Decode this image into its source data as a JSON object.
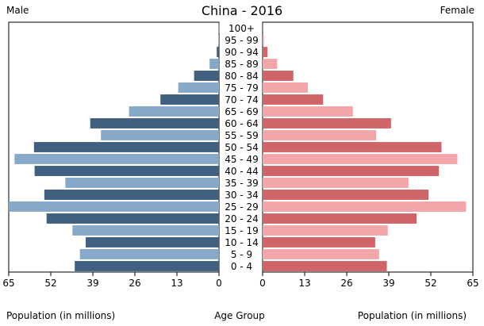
{
  "chart_data": {
    "type": "bar",
    "title": "China - 2016",
    "left_label": "Male",
    "right_label": "Female",
    "xlabel_left": "Population (in millions)",
    "xlabel_center": "Age Group",
    "xlabel_right": "Population (in millions)",
    "xlim": [
      0,
      65
    ],
    "ticks": [
      0,
      13,
      26,
      39,
      52,
      65
    ],
    "categories": [
      "100+",
      "95 - 99",
      "90 - 94",
      "85 - 89",
      "80 - 84",
      "75 - 79",
      "70 - 74",
      "65 - 69",
      "60 - 64",
      "55 - 59",
      "50 - 54",
      "45 - 49",
      "40 - 44",
      "35 - 39",
      "30 - 34",
      "25 - 29",
      "20 - 24",
      "15 - 19",
      "10 - 14",
      "5 - 9",
      "0 - 4"
    ],
    "series": [
      {
        "name": "Male",
        "values": [
          0.1,
          0.2,
          0.7,
          2.9,
          7.7,
          12.6,
          18.1,
          27.8,
          39.8,
          36.5,
          57.2,
          63.2,
          57.0,
          47.5,
          54.0,
          65.0,
          53.3,
          45.3,
          41.2,
          43.0,
          44.6
        ]
      },
      {
        "name": "Female",
        "values": [
          0.1,
          0.4,
          1.5,
          4.5,
          9.5,
          14.0,
          18.7,
          27.9,
          39.7,
          35.1,
          55.3,
          60.2,
          54.5,
          45.1,
          51.3,
          62.9,
          47.6,
          38.7,
          34.8,
          36.0,
          38.4
        ]
      }
    ],
    "colors": {
      "male_dark": "#41607f",
      "male_light": "#87a9c9",
      "female_dark": "#cf6568",
      "female_light": "#f2a6a9"
    },
    "grid": false,
    "legend": "none"
  }
}
